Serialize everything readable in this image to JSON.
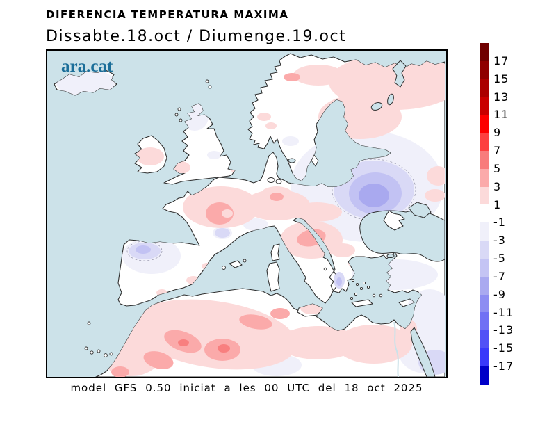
{
  "header": {
    "line1": "DIFERENCIA TEMPERATURA MAXIMA",
    "line2": "Dissabte.18.oct / Diumenge.19.oct"
  },
  "map": {
    "logo": "ara.cat",
    "caption": "model GFS 0.50 iniciat a les 00 UTC del 18 oct 2025"
  },
  "colorbar": {
    "labels": [
      "17",
      "15",
      "13",
      "11",
      "9",
      "7",
      "5",
      "3",
      "1",
      "-1",
      "-3",
      "-5",
      "-7",
      "-9",
      "-11",
      "-13",
      "-15",
      "-17"
    ],
    "segment_colors": [
      "#700000",
      "#8f0000",
      "#ab0000",
      "#c90000",
      "#fd0000",
      "#fd4040",
      "#f87c7c",
      "#fbaaaa",
      "#fcdada",
      "#ffffff",
      "#f0f0fa",
      "#d9d9f6",
      "#c4c4f4",
      "#a9a9f0",
      "#8d8df2",
      "#7070f4",
      "#5151f6",
      "#3939fa",
      "#0000c8"
    ]
  },
  "colors": {
    "sea": "#cce2e9",
    "land": "#ffffff",
    "coastline": "#2e2e2e",
    "logo_blue": "#1b6e99",
    "positive_shades": [
      "#fcdada",
      "#fbaaaa",
      "#f87f7f"
    ],
    "negative_shades": [
      "#f0f0fa",
      "#d9d9f6",
      "#c2c2f3",
      "#a9a9ef"
    ]
  }
}
